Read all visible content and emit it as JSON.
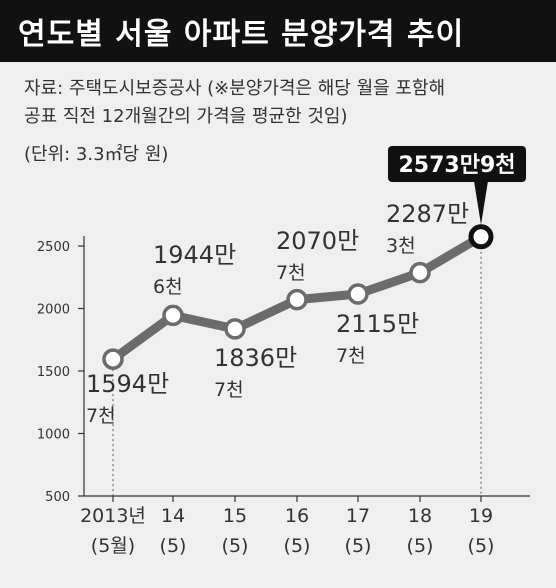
{
  "header": {
    "title": "연도별 서울 아파트 분양가격 추이"
  },
  "notes": {
    "source_line1": "자료: 주택도시보증공사 (※분양가격은 해당 월을 포함해",
    "source_line2": "공표 직전 12개월간의 가격을 평균한 것임)",
    "unit": "(단위: 3.3㎡당 원)"
  },
  "colors": {
    "line": "#6b6b6b",
    "background": "#efefef",
    "title_bg": "#111111",
    "callout_bg": "#111111"
  },
  "chart_data": {
    "type": "line",
    "title": "연도별 서울 아파트 분양가격 추이",
    "xlabel": "",
    "ylabel": "",
    "categories": [
      "2013년 (5월)",
      "14 (5)",
      "15 (5)",
      "16 (5)",
      "17 (5)",
      "18 (5)",
      "19 (5)"
    ],
    "x_tick_top": [
      "2013년",
      "14",
      "15",
      "16",
      "17",
      "18",
      "19"
    ],
    "x_tick_bottom": [
      "(5월)",
      "(5)",
      "(5)",
      "(5)",
      "(5)",
      "(5)",
      "(5)"
    ],
    "values": [
      1594.7,
      1944.6,
      1836.7,
      2070.7,
      2115.7,
      2287.3,
      2573.9
    ],
    "point_labels": [
      [
        "1594만",
        "7천"
      ],
      [
        "1944만",
        "6천"
      ],
      [
        "1836만",
        "7천"
      ],
      [
        "2070만",
        "7천"
      ],
      [
        "2115만",
        "7천"
      ],
      [
        "2287만",
        "3천"
      ],
      [
        "2573만9천"
      ]
    ],
    "yticks": [
      500,
      1000,
      1500,
      2000,
      2500
    ],
    "ylim": [
      500,
      2600
    ],
    "grid": false,
    "highlight_last": true
  }
}
